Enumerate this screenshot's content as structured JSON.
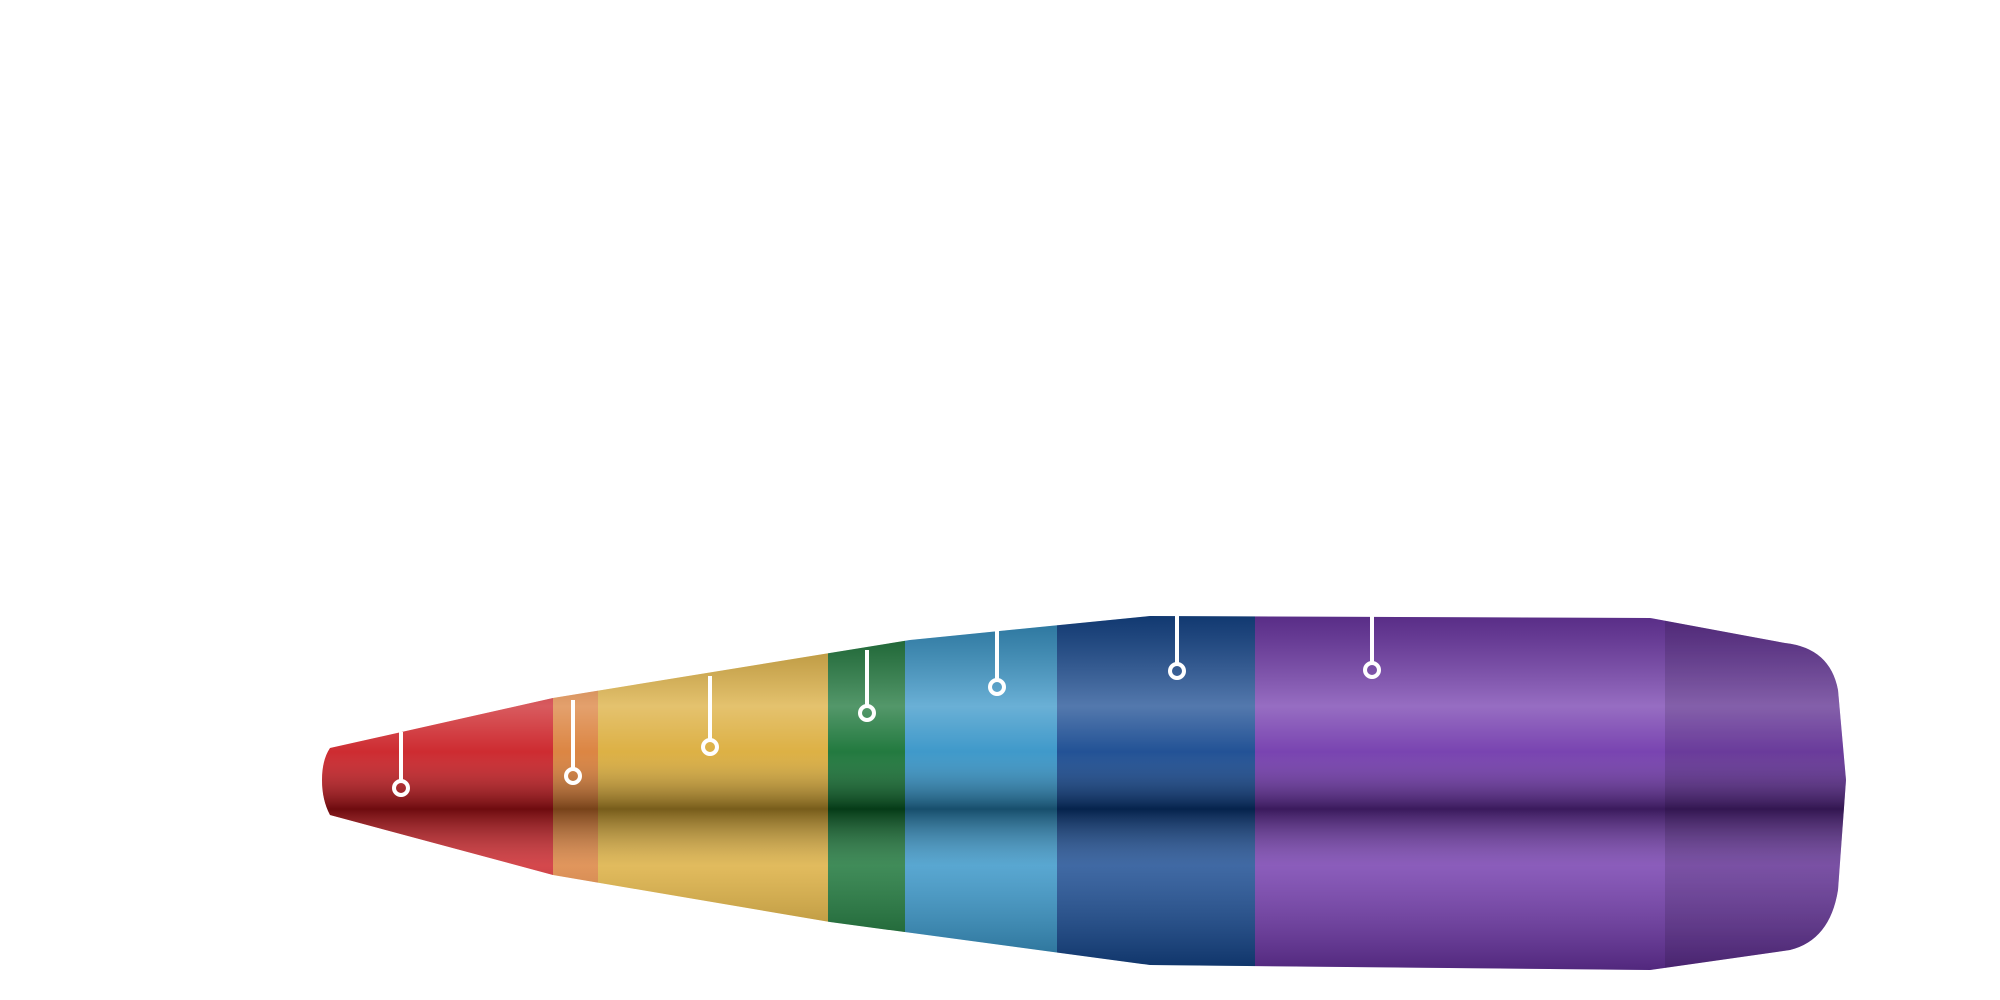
{
  "diagram": {
    "subject": "bullet",
    "segments": [
      {
        "name": "tip",
        "color": "#c8141a",
        "marker": "callout-1"
      },
      {
        "name": "tip-transition",
        "color": "#d8782e",
        "marker": "callout-2"
      },
      {
        "name": "ogive-front",
        "color": "#d9a830",
        "marker": "callout-3"
      },
      {
        "name": "ogive-band",
        "color": "#0a6b2a",
        "marker": "callout-4"
      },
      {
        "name": "ogive-rear",
        "color": "#2a8ec4",
        "marker": "callout-5"
      },
      {
        "name": "bearing-front",
        "color": "#0a3f8a",
        "marker": "callout-6"
      },
      {
        "name": "body-and-boattail",
        "color": "#6a2fa8",
        "marker": "callout-7"
      }
    ],
    "callouts": [
      {
        "id": "callout-1",
        "label": ""
      },
      {
        "id": "callout-2",
        "label": ""
      },
      {
        "id": "callout-3",
        "label": ""
      },
      {
        "id": "callout-4",
        "label": ""
      },
      {
        "id": "callout-5",
        "label": ""
      },
      {
        "id": "callout-6",
        "label": ""
      },
      {
        "id": "callout-7",
        "label": ""
      }
    ]
  }
}
